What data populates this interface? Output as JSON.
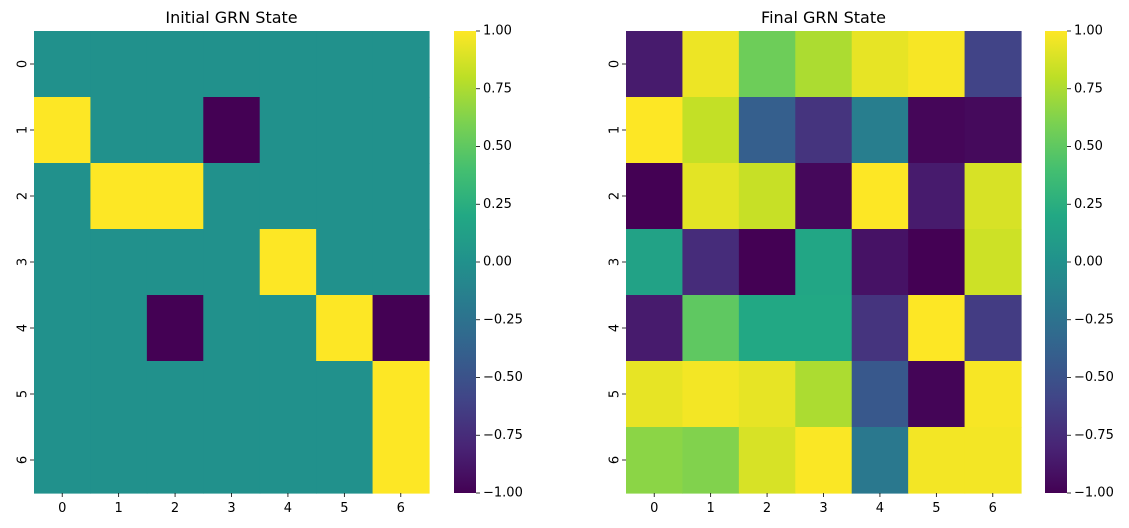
{
  "chart_data": [
    {
      "type": "heatmap",
      "title": "Initial GRN State",
      "xlabel": "",
      "ylabel": "",
      "x_categories": [
        "0",
        "1",
        "2",
        "3",
        "4",
        "5",
        "6"
      ],
      "y_categories": [
        "0",
        "1",
        "2",
        "3",
        "4",
        "5",
        "6"
      ],
      "values": [
        [
          0,
          0,
          0,
          0,
          0,
          0,
          0
        ],
        [
          1,
          0,
          0,
          -1,
          0,
          0,
          0
        ],
        [
          0,
          1,
          1,
          0,
          0,
          0,
          0
        ],
        [
          0,
          0,
          0,
          0,
          1,
          0,
          0
        ],
        [
          0,
          0,
          -1,
          0,
          0,
          1,
          -1
        ],
        [
          0,
          0,
          0,
          0,
          0,
          0,
          1
        ],
        [
          0,
          0,
          0,
          0,
          0,
          0,
          1
        ]
      ],
      "colormap": "viridis",
      "vmin": -1,
      "vmax": 1,
      "colorbar_ticks": [
        "1.00",
        "0.75",
        "0.50",
        "0.25",
        "0.00",
        "−0.25",
        "−0.50",
        "−0.75",
        "−1.00"
      ]
    },
    {
      "type": "heatmap",
      "title": "Final GRN State",
      "xlabel": "",
      "ylabel": "",
      "x_categories": [
        "0",
        "1",
        "2",
        "3",
        "4",
        "5",
        "6"
      ],
      "y_categories": [
        "0",
        "1",
        "2",
        "3",
        "4",
        "5",
        "6"
      ],
      "values": [
        [
          -0.85,
          0.95,
          0.55,
          0.75,
          0.93,
          0.98,
          -0.6
        ],
        [
          1.0,
          0.82,
          -0.4,
          -0.7,
          -0.15,
          -0.97,
          -0.95
        ],
        [
          -1.0,
          0.92,
          0.83,
          -0.96,
          1.0,
          -0.85,
          0.88
        ],
        [
          0.15,
          -0.75,
          -1.0,
          0.18,
          -0.9,
          -1.0,
          0.85
        ],
        [
          -0.85,
          0.5,
          0.2,
          0.2,
          -0.7,
          1.0,
          -0.65
        ],
        [
          0.93,
          0.97,
          0.93,
          0.75,
          -0.45,
          -0.98,
          0.98
        ],
        [
          0.65,
          0.62,
          0.88,
          0.99,
          -0.2,
          0.97,
          0.97
        ]
      ],
      "colormap": "viridis",
      "vmin": -1,
      "vmax": 1,
      "colorbar_ticks": [
        "1.00",
        "0.75",
        "0.50",
        "0.25",
        "0.00",
        "−0.25",
        "−0.50",
        "−0.75",
        "−1.00"
      ]
    }
  ]
}
